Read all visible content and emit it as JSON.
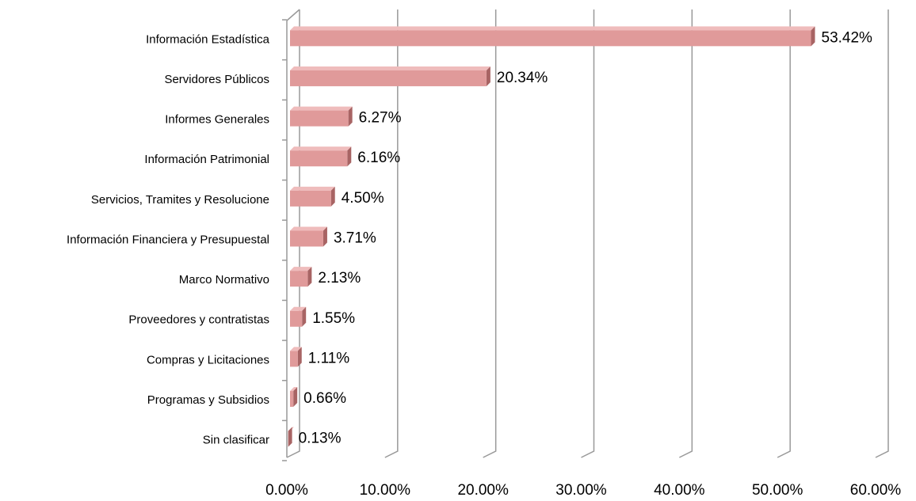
{
  "chart_data": {
    "type": "bar3d_horizontal",
    "categories": [
      "Información Estadística",
      "Servidores Públicos",
      "Informes Generales",
      "Información Patrimonial",
      "Servicios, Tramites y Resolucione",
      "Información Financiera y Presupuestal",
      "Marco Normativo",
      "Proveedores y contratistas",
      "Compras y Licitaciones",
      "Programas y Subsidios",
      "Sin clasificar"
    ],
    "values": [
      53.42,
      20.34,
      6.27,
      6.16,
      4.5,
      3.71,
      2.13,
      1.55,
      1.11,
      0.66,
      0.13
    ],
    "value_labels": [
      "53.42%",
      "20.34%",
      "6.27%",
      "6.16%",
      "4.50%",
      "3.71%",
      "2.13%",
      "1.55%",
      "1.11%",
      "0.66%",
      "0.13%"
    ],
    "color": "#e09a9a",
    "xlim": [
      0,
      60
    ],
    "xticks": [
      {
        "value": 0,
        "label": "0.00%"
      },
      {
        "value": 10,
        "label": "10.00%"
      },
      {
        "value": 20,
        "label": "20.00%"
      },
      {
        "value": 30,
        "label": "30.00%"
      },
      {
        "value": 40,
        "label": "40.00%"
      },
      {
        "value": 50,
        "label": "50.00%"
      },
      {
        "value": 60,
        "label": "60.00%"
      }
    ],
    "grid": true
  }
}
